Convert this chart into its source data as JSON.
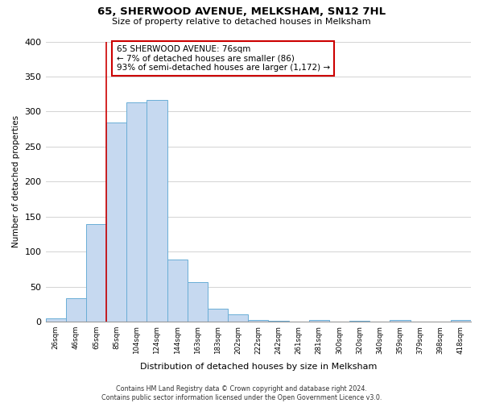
{
  "title": "65, SHERWOOD AVENUE, MELKSHAM, SN12 7HL",
  "subtitle": "Size of property relative to detached houses in Melksham",
  "xlabel": "Distribution of detached houses by size in Melksham",
  "ylabel": "Number of detached properties",
  "bin_labels": [
    "26sqm",
    "46sqm",
    "65sqm",
    "85sqm",
    "104sqm",
    "124sqm",
    "144sqm",
    "163sqm",
    "183sqm",
    "202sqm",
    "222sqm",
    "242sqm",
    "261sqm",
    "281sqm",
    "300sqm",
    "320sqm",
    "340sqm",
    "359sqm",
    "379sqm",
    "398sqm",
    "418sqm"
  ],
  "bar_heights": [
    5,
    33,
    139,
    284,
    313,
    317,
    89,
    57,
    19,
    10,
    3,
    1,
    0,
    2,
    0,
    1,
    0,
    2,
    0,
    0,
    2
  ],
  "bar_color": "#c6d9f0",
  "bar_edge_color": "#6aaed6",
  "vline_color": "#cc0000",
  "annotation_line1": "65 SHERWOOD AVENUE: 76sqm",
  "annotation_line2": "← 7% of detached houses are smaller (86)",
  "annotation_line3": "93% of semi-detached houses are larger (1,172) →",
  "annotation_box_facecolor": "#ffffff",
  "annotation_box_edgecolor": "#cc0000",
  "ylim": [
    0,
    400
  ],
  "yticks": [
    0,
    50,
    100,
    150,
    200,
    250,
    300,
    350,
    400
  ],
  "grid_color": "#cccccc",
  "footer_line1": "Contains HM Land Registry data © Crown copyright and database right 2024.",
  "footer_line2": "Contains public sector information licensed under the Open Government Licence v3.0.",
  "vline_bin_index": 2,
  "num_bins": 21
}
